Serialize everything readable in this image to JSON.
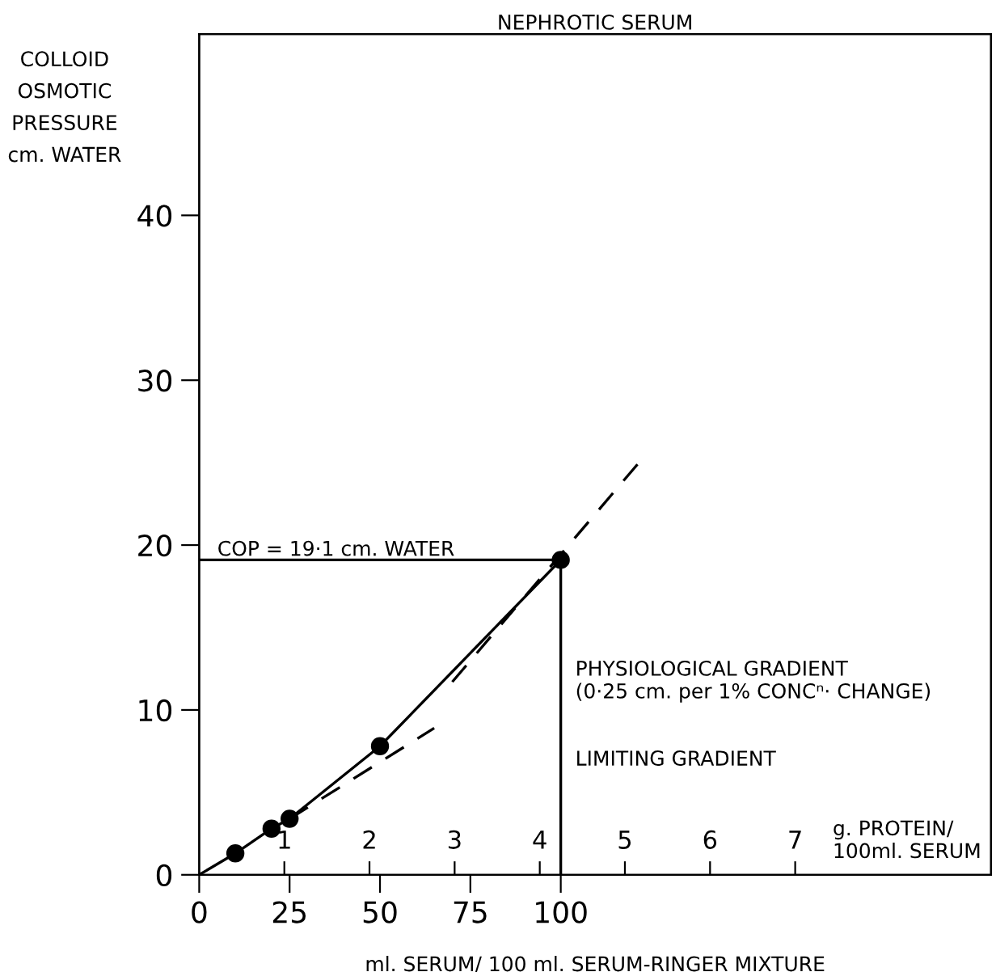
{
  "chart_data": {
    "type": "line",
    "title": "NEPHROTIC SERUM",
    "xlabel": "ml. SERUM/ 100 ml. SERUM-RINGER MIXTURE",
    "ylabel": "COLLOID\nOSMOTIC\nPRESSURE\ncm. WATER",
    "x2label": "g. PROTEIN/\n100ml. SERUM",
    "xlim": [
      0,
      219
    ],
    "xticks": [
      0,
      25,
      50,
      75,
      100
    ],
    "x2lim": [
      0,
      9.3
    ],
    "x2ticks": [
      1,
      2,
      3,
      4,
      5,
      6,
      7
    ],
    "ylim": [
      0,
      51
    ],
    "yticks": [
      0,
      10,
      20,
      30,
      40
    ],
    "grid": false,
    "legend": false,
    "series": [
      {
        "color": "#000000",
        "line_style": "solid",
        "marker": "none",
        "x": [
          0,
          10,
          20,
          25,
          50,
          100
        ],
        "values": [
          0,
          1.3,
          2.8,
          3.4,
          7.8,
          19.1
        ]
      },
      {
        "type": "scatter",
        "color": "#000000",
        "marker": "circle",
        "x": [
          10,
          20,
          25,
          50,
          100
        ],
        "values": [
          1.3,
          2.8,
          3.4,
          7.8,
          19.1
        ]
      },
      {
        "type": "line",
        "color": "#000000",
        "line_style": "dashed",
        "marker": "none",
        "x": [
          25,
          65
        ],
        "values": [
          3.4,
          8.9
        ]
      },
      {
        "type": "line",
        "color": "#000000",
        "line_style": "dashed",
        "marker": "none",
        "x": [
          70,
          122
        ],
        "values": [
          11.7,
          25.1
        ]
      },
      {
        "type": "line",
        "color": "#000000",
        "line_style": "solid",
        "marker": "none",
        "x": [
          0,
          100,
          100
        ],
        "values": [
          19.1,
          19.1,
          0
        ]
      }
    ],
    "annotations": [
      {
        "text": "COP = 19·1 cm. WATER",
        "x": 5,
        "y": 19.1
      },
      "PHYSIOLOGICAL GRADIENT\n(0·25 cm. per 1% CONCⁿ· CHANGE)",
      "LIMITING GRADIENT"
    ]
  }
}
